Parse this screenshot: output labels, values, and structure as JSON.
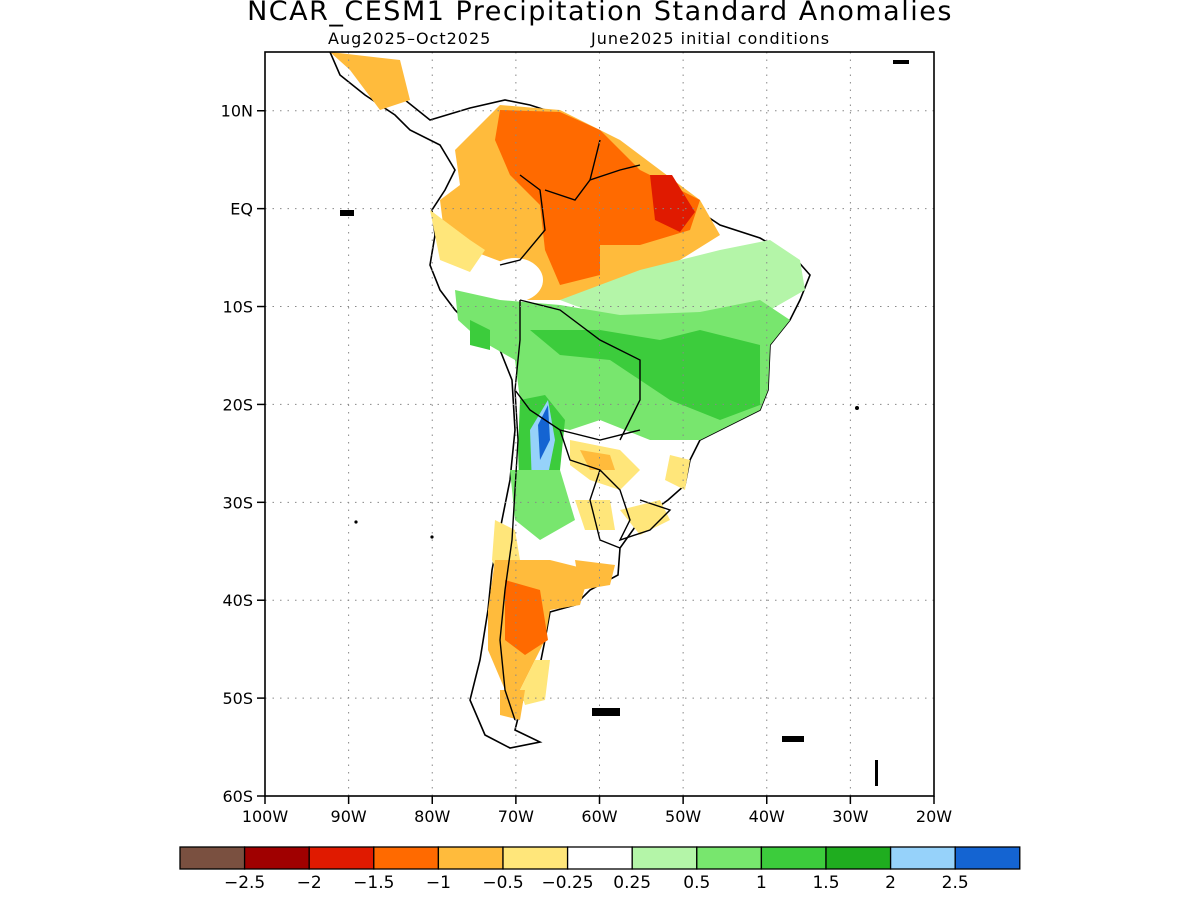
{
  "title": "NCAR_CESM1 Precipitation Standard Anomalies",
  "subtitle_left": "Aug2025–Oct2025",
  "subtitle_right": "June2025 initial conditions",
  "map": {
    "region": "South America",
    "lon_range": [
      -100,
      -20
    ],
    "lat_range": [
      -60,
      16
    ],
    "lat_ticks": [
      {
        "value": 10,
        "label": "10N"
      },
      {
        "value": 0,
        "label": "EQ"
      },
      {
        "value": -10,
        "label": "10S"
      },
      {
        "value": -20,
        "label": "20S"
      },
      {
        "value": -30,
        "label": "30S"
      },
      {
        "value": -40,
        "label": "40S"
      },
      {
        "value": -50,
        "label": "50S"
      },
      {
        "value": -60,
        "label": "60S"
      }
    ],
    "lon_ticks": [
      {
        "value": -100,
        "label": "100W"
      },
      {
        "value": -90,
        "label": "90W"
      },
      {
        "value": -80,
        "label": "80W"
      },
      {
        "value": -70,
        "label": "70W"
      },
      {
        "value": -60,
        "label": "60W"
      },
      {
        "value": -50,
        "label": "50W"
      },
      {
        "value": -40,
        "label": "40W"
      },
      {
        "value": -30,
        "label": "30W"
      },
      {
        "value": -20,
        "label": "20W"
      }
    ],
    "grid": "dotted"
  },
  "colorbar": {
    "colors": [
      "#7a5040",
      "#a00000",
      "#e01a00",
      "#ff6a00",
      "#ffbb3c",
      "#ffe67a",
      "#ffffff",
      "#b4f5a8",
      "#78e66e",
      "#3ccc3c",
      "#1fad1f",
      "#96d2fa",
      "#1464d2"
    ],
    "labels": [
      "−2.5",
      "−2",
      "−1.5",
      "−1",
      "−0.5",
      "−0.25",
      "0.25",
      "0.5",
      "1",
      "1.5",
      "2",
      "2.5"
    ]
  }
}
